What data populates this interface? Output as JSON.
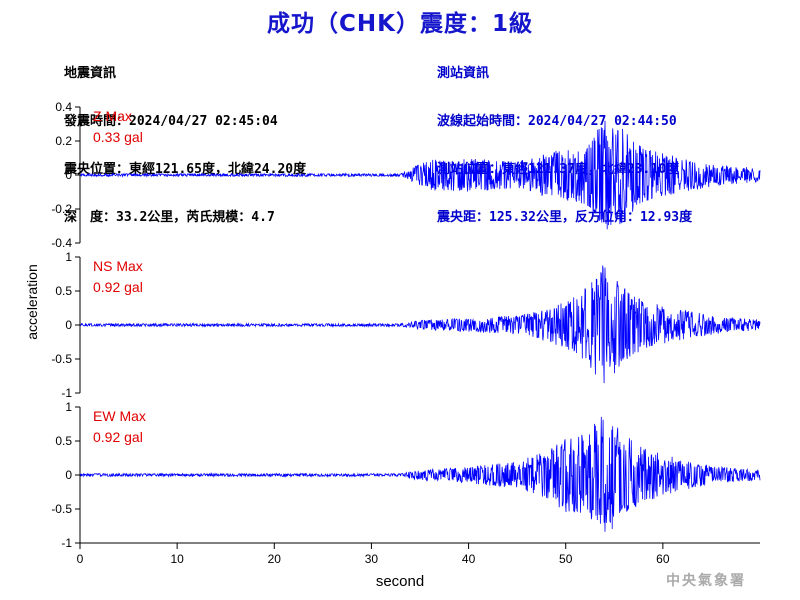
{
  "title": "成功（CHK）震度：1級",
  "quake_info": {
    "heading": "地震資訊",
    "origin_time": "發震時間：2024/04/27 02:45:04",
    "epicenter": "震央位置：東經121.65度，北緯24.20度",
    "depth_magnitude": "深　度：33.2公里，芮氏規模：4.7"
  },
  "station_info": {
    "heading": "測站資訊",
    "wave_start": "波線起始時間：2024/04/27 02:44:50",
    "location": "測站位置：東經121.37度，北緯23.10度",
    "distance": "震央距：125.32公里，反方位角：12.93度"
  },
  "footer": "中央氣象署",
  "colors": {
    "trace": "#0000ff",
    "max_label": "#e00000",
    "title": "#1515cc",
    "station_info": "#0000cc"
  },
  "chart_data": {
    "type": "line",
    "xlabel": "second",
    "ylabel": "acceleration",
    "xlim": [
      0,
      70
    ],
    "x_ticks": [
      "0",
      "10",
      "20",
      "30",
      "40",
      "50",
      "60"
    ],
    "panels": [
      {
        "component": "Z",
        "max_label": "Z Max",
        "max_value": "0.33 gal",
        "ylim": [
          -0.4,
          0.4
        ],
        "y_ticks": [
          "-0.4",
          "-0.2",
          "0",
          "0.2",
          "0.4"
        ],
        "envelope": [
          [
            0,
            0.008
          ],
          [
            33,
            0.008
          ],
          [
            34,
            0.04
          ],
          [
            36,
            0.09
          ],
          [
            40,
            0.1
          ],
          [
            45,
            0.08
          ],
          [
            48,
            0.13
          ],
          [
            52,
            0.18
          ],
          [
            54,
            0.33
          ],
          [
            56,
            0.28
          ],
          [
            58,
            0.16
          ],
          [
            62,
            0.1
          ],
          [
            66,
            0.06
          ],
          [
            70,
            0.04
          ]
        ]
      },
      {
        "component": "NS",
        "max_label": "NS Max",
        "max_value": "0.92 gal",
        "ylim": [
          -1,
          1
        ],
        "y_ticks": [
          "-1",
          "-0.5",
          "0",
          "0.5",
          "1"
        ],
        "envelope": [
          [
            0,
            0.02
          ],
          [
            33,
            0.02
          ],
          [
            35,
            0.07
          ],
          [
            40,
            0.1
          ],
          [
            45,
            0.14
          ],
          [
            48,
            0.25
          ],
          [
            50,
            0.35
          ],
          [
            52,
            0.55
          ],
          [
            54,
            0.92
          ],
          [
            56,
            0.55
          ],
          [
            58,
            0.35
          ],
          [
            62,
            0.22
          ],
          [
            66,
            0.12
          ],
          [
            70,
            0.08
          ]
        ]
      },
      {
        "component": "EW",
        "max_label": "EW Max",
        "max_value": "0.92 gal",
        "ylim": [
          -1,
          1
        ],
        "y_ticks": [
          "-1",
          "-0.5",
          "0",
          "0.5",
          "1"
        ],
        "envelope": [
          [
            0,
            0.02
          ],
          [
            33,
            0.02
          ],
          [
            35,
            0.08
          ],
          [
            40,
            0.12
          ],
          [
            45,
            0.2
          ],
          [
            48,
            0.35
          ],
          [
            50,
            0.55
          ],
          [
            52,
            0.6
          ],
          [
            54,
            0.92
          ],
          [
            56,
            0.6
          ],
          [
            58,
            0.4
          ],
          [
            62,
            0.22
          ],
          [
            66,
            0.12
          ],
          [
            70,
            0.08
          ]
        ]
      }
    ]
  }
}
